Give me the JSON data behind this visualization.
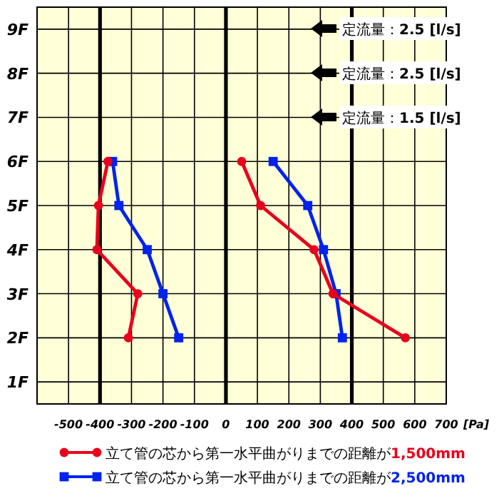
{
  "chart_data": {
    "type": "line",
    "xlabel": "[Pa]",
    "xlim": [
      -600,
      700
    ],
    "xticks": [
      {
        "value": -600,
        "label": null
      },
      -500,
      -400,
      -300,
      -200,
      -100,
      0,
      100,
      200,
      300,
      400,
      500,
      600,
      700
    ],
    "ylim": [
      0.5,
      9.5
    ],
    "yticks": [
      {
        "value": 1,
        "label": "1F"
      },
      {
        "value": 2,
        "label": "2F"
      },
      {
        "value": 3,
        "label": "3F"
      },
      {
        "value": 4,
        "label": "4F"
      },
      {
        "value": 5,
        "label": "5F"
      },
      {
        "value": 6,
        "label": "6F"
      },
      {
        "value": 7,
        "label": "7F"
      },
      {
        "value": 8,
        "label": "8F"
      },
      {
        "value": 9,
        "label": "9F"
      }
    ],
    "grid": true,
    "legend": "bottom",
    "line_style": "solid",
    "ref_lines": [
      {
        "axis": "x",
        "value": -400,
        "color": "#000000"
      },
      {
        "axis": "x",
        "value": 0,
        "color": "#000000"
      },
      {
        "axis": "x",
        "value": 400,
        "color": "#000000"
      }
    ],
    "annotations": [
      "定流量：**2.5 [l/s]**",
      "定流量：**2.5 [l/s]**",
      "定流量：**1.5 [l/s]**"
    ],
    "series": [
      {
        "name": "立て管の芯から第一水平曲がりまでの距離が**1,500mm**",
        "color": "#e8001c",
        "marker": "circle",
        "x": [
          -310,
          -280,
          -410,
          -405,
          -375
        ],
        "values": [
          2,
          3,
          4,
          5,
          6
        ]
      },
      {
        "name": "立て管の芯から第一水平曲がりまでの距離が**2,500mm**",
        "color": "#0022ee",
        "marker": "square",
        "x": [
          -150,
          -200,
          -250,
          -340,
          -360
        ],
        "values": [
          2,
          3,
          4,
          5,
          6
        ]
      },
      {
        "color": "#e8001c",
        "marker": "circle",
        "x": [
          570,
          340,
          280,
          110,
          50
        ],
        "values": [
          2,
          3,
          4,
          5,
          6
        ]
      },
      {
        "color": "#0022ee",
        "marker": "square",
        "x": [
          370,
          350,
          310,
          260,
          150
        ],
        "values": [
          2,
          3,
          4,
          5,
          6
        ]
      }
    ]
  }
}
